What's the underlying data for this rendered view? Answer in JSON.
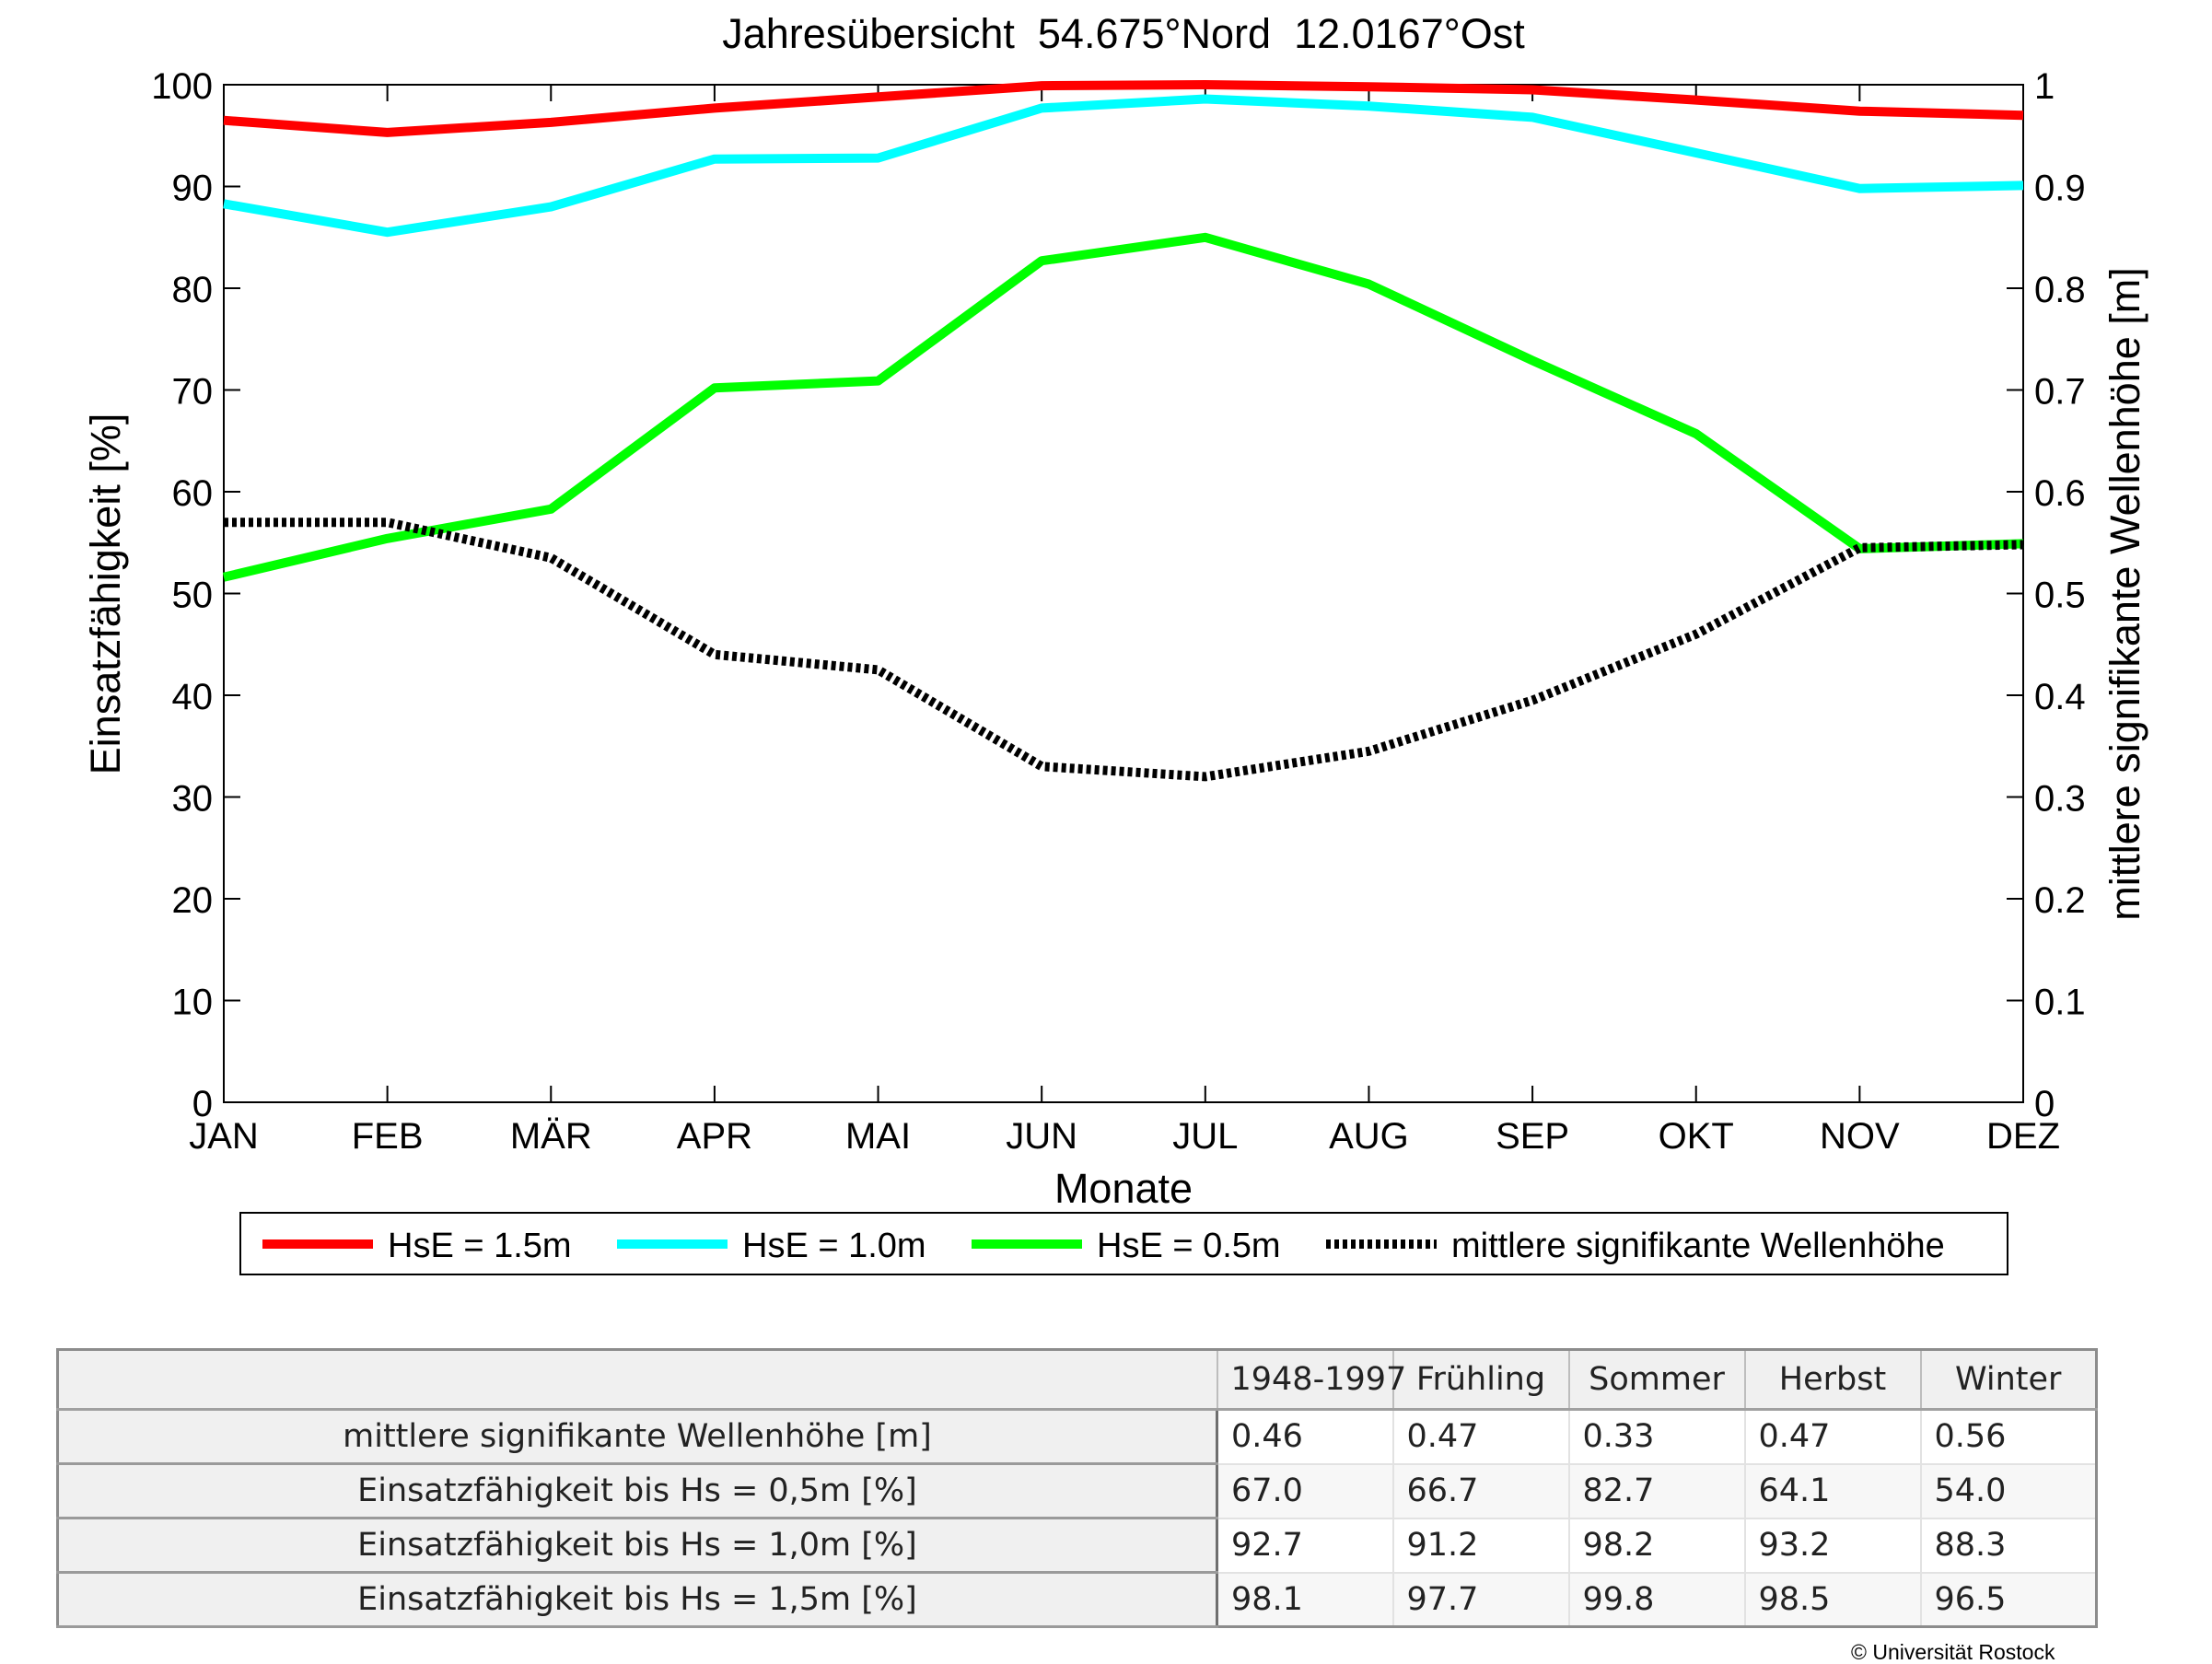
{
  "chart_data": {
    "type": "line",
    "title": "Jahresübersicht  54.675°Nord  12.0167°Ost",
    "xlabel": "Monate",
    "ylabel": "Einsatzfähigkeit [%]",
    "y2label": "mittlere signifikante Wellenhöhe [m]",
    "categories": [
      "JAN",
      "FEB",
      "MÄR",
      "APR",
      "MAI",
      "JUN",
      "JUL",
      "AUG",
      "SEP",
      "OKT",
      "NOV",
      "DEZ"
    ],
    "ylim": [
      0,
      100
    ],
    "yticks": [
      "0",
      "10",
      "20",
      "30",
      "40",
      "50",
      "60",
      "70",
      "80",
      "90",
      "100"
    ],
    "y2lim": [
      0,
      1
    ],
    "y2ticks": [
      "0",
      "0.1",
      "0.2",
      "0.3",
      "0.4",
      "0.5",
      "0.6",
      "0.7",
      "0.8",
      "0.9",
      "1"
    ],
    "legend_position": "bottom",
    "series": [
      {
        "name": "HsE = 1.5m",
        "axis": "left",
        "color": "#ff0000",
        "style": "solid",
        "values": [
          96.5,
          95.3,
          96.3,
          97.7,
          98.8,
          99.9,
          100,
          99.8,
          99.5,
          98.5,
          97.4,
          97.0
        ]
      },
      {
        "name": "HsE = 1.0m",
        "axis": "left",
        "color": "#00ffff",
        "style": "solid",
        "values": [
          88.3,
          85.5,
          88.0,
          92.7,
          92.8,
          97.7,
          98.6,
          97.9,
          96.8,
          93.3,
          89.8,
          90.1
        ]
      },
      {
        "name": "HsE = 0.5m",
        "axis": "left",
        "color": "#00ff00",
        "style": "solid",
        "values": [
          51.6,
          55.4,
          58.3,
          70.2,
          70.9,
          82.7,
          85.0,
          80.4,
          72.9,
          65.7,
          54.4,
          54.9
        ]
      },
      {
        "name": "mittlere signifikante Wellenhöhe",
        "axis": "right",
        "color": "#000000",
        "style": "dotted",
        "values": [
          0.57,
          0.57,
          0.535,
          0.44,
          0.425,
          0.33,
          0.32,
          0.345,
          0.395,
          0.46,
          0.545,
          0.548
        ]
      }
    ]
  },
  "table": {
    "columns": [
      "1948-1997",
      "Frühling",
      "Sommer",
      "Herbst",
      "Winter"
    ],
    "rows": [
      {
        "label": "mittlere signifikante Wellenhöhe [m]",
        "values": [
          "0.46",
          "0.47",
          "0.33",
          "0.47",
          "0.56"
        ]
      },
      {
        "label": "Einsatzfähigkeit bis Hs = 0,5m [%]",
        "values": [
          "67.0",
          "66.7",
          "82.7",
          "64.1",
          "54.0"
        ]
      },
      {
        "label": "Einsatzfähigkeit bis Hs = 1,0m [%]",
        "values": [
          "92.7",
          "91.2",
          "98.2",
          "93.2",
          "88.3"
        ]
      },
      {
        "label": "Einsatzfähigkeit bis Hs = 1,5m [%]",
        "values": [
          "98.1",
          "97.7",
          "99.8",
          "98.5",
          "96.5"
        ]
      }
    ]
  },
  "footer": {
    "copyright": "© Universität Rostock"
  }
}
